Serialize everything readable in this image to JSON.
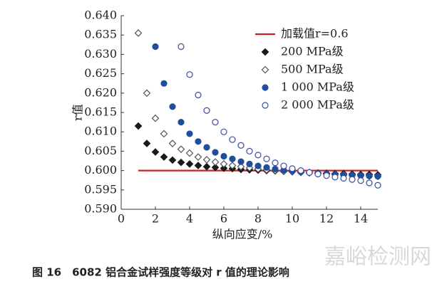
{
  "chart_data": {
    "type": "scatter",
    "xlabel": "纵向应变/%",
    "ylabel": "r值",
    "caption": "图 16　6082 铝合金试样强度等级对 r 值的理论影响",
    "watermark": "嘉峪检测网",
    "xlim": [
      0,
      15
    ],
    "xticks": [
      0,
      2,
      4,
      6,
      8,
      10,
      12,
      14
    ],
    "ylim": [
      0.59,
      0.64
    ],
    "yticks": [
      {
        "value": 0.59,
        "label": "0.590"
      },
      0.595,
      {
        "value": 0.6,
        "label": "0.600"
      },
      0.605,
      {
        "value": 0.61,
        "label": "0.610"
      },
      0.615,
      {
        "value": 0.62,
        "label": "0.620"
      },
      0.625,
      {
        "value": 0.63,
        "label": "0.630"
      },
      0.635,
      {
        "value": 0.64,
        "label": "0.640"
      }
    ],
    "series": [
      {
        "name": "加载值r=0.6",
        "mode": "line",
        "color": "#c8232c",
        "x": [
          1,
          15
        ],
        "values": [
          0.6,
          0.6
        ]
      },
      {
        "name": "200 MPa级",
        "mode": "marker",
        "marker": "diamond",
        "filled": true,
        "color": "#1a1a1a",
        "x": [
          1,
          1.5,
          2,
          2.5,
          3,
          3.5,
          4,
          4.5,
          5,
          5.5,
          6,
          6.5,
          7,
          7.5,
          8,
          8.5,
          9,
          9.5,
          10,
          10.5,
          11,
          11.5,
          12,
          12.5,
          13,
          13.5,
          14,
          14.5,
          15
        ],
        "values": [
          0.6115,
          0.607,
          0.6048,
          0.6035,
          0.6027,
          0.6021,
          0.6017,
          0.6013,
          0.601,
          0.6008,
          0.6006,
          0.6005,
          0.6003,
          0.6002,
          0.6001,
          0.6,
          0.5999,
          0.5998,
          0.5997,
          0.5996,
          0.5995,
          0.5994,
          0.5993,
          0.5992,
          0.5992,
          0.5991,
          0.599,
          0.599,
          0.5989
        ]
      },
      {
        "name": "500 MPa级",
        "mode": "marker",
        "marker": "diamond",
        "filled": false,
        "color": "#555555",
        "x": [
          1,
          1.5,
          2,
          2.5,
          3,
          3.5,
          4,
          4.5,
          5,
          5.5,
          6,
          6.5,
          7,
          7.5,
          8,
          8.5,
          9,
          9.5,
          10,
          10.5,
          11,
          11.5,
          12,
          12.5,
          13,
          13.5,
          14,
          14.5,
          15
        ],
        "values": [
          0.6355,
          0.62,
          0.6135,
          0.6095,
          0.607,
          0.6055,
          0.6045,
          0.6035,
          0.6028,
          0.6022,
          0.6017,
          0.6013,
          0.601,
          0.6007,
          0.6004,
          0.6002,
          0.6,
          0.5998,
          0.5997,
          0.5995,
          0.5994,
          0.5993,
          0.5991,
          0.599,
          0.5989,
          0.5988,
          0.5987,
          0.5986,
          0.5985
        ]
      },
      {
        "name": "1 000 MPa级",
        "mode": "marker",
        "marker": "circle",
        "filled": true,
        "color": "#1f4e9c",
        "x": [
          2,
          2.5,
          3,
          3.5,
          4,
          4.5,
          5,
          5.5,
          6,
          6.5,
          7,
          7.5,
          8,
          8.5,
          9,
          9.5,
          10,
          10.5,
          11,
          11.5,
          12,
          12.5,
          13,
          13.5,
          14,
          14.5,
          15
        ],
        "values": [
          0.632,
          0.6225,
          0.6165,
          0.6125,
          0.6095,
          0.6075,
          0.606,
          0.6047,
          0.6037,
          0.603,
          0.6023,
          0.6017,
          0.6012,
          0.6008,
          0.6004,
          0.6001,
          0.5999,
          0.5997,
          0.5995,
          0.5993,
          0.5991,
          0.599,
          0.5989,
          0.5988,
          0.5987,
          0.5986,
          0.5985
        ]
      },
      {
        "name": "2 000 MPa级",
        "mode": "marker",
        "marker": "circle",
        "filled": false,
        "color": "#3a4ea0",
        "x": [
          3.5,
          4,
          4.5,
          5,
          5.5,
          6,
          6.5,
          7,
          7.5,
          8,
          8.5,
          9,
          9.5,
          10,
          10.5,
          11,
          11.5,
          12,
          12.5,
          13,
          13.5,
          14,
          14.5,
          15
        ],
        "values": [
          0.632,
          0.6248,
          0.6195,
          0.6155,
          0.6125,
          0.61,
          0.608,
          0.6065,
          0.605,
          0.604,
          0.603,
          0.602,
          0.6012,
          0.6005,
          0.6,
          0.5995,
          0.5991,
          0.5987,
          0.5983,
          0.598,
          0.5977,
          0.5974,
          0.5968,
          0.5962
        ]
      }
    ]
  }
}
